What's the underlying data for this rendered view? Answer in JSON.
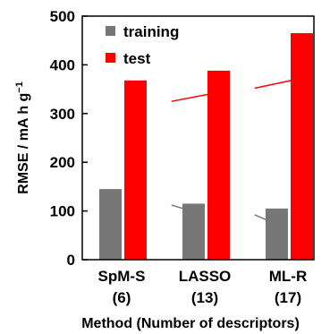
{
  "chart_data": {
    "type": "bar",
    "categories": [
      "SpM-S",
      "LASSO",
      "ML-R"
    ],
    "category_sublabels": [
      "(6)",
      "(13)",
      "(17)"
    ],
    "series": [
      {
        "name": "training",
        "values": [
          145,
          115,
          105
        ],
        "color": "#777777"
      },
      {
        "name": "test",
        "values": [
          368,
          388,
          465
        ],
        "color": "#ff0000"
      }
    ],
    "xlabel": "Method (Number of descriptors)",
    "ylabel": "RMSE / mA h g",
    "ylabel_superscript": "−1",
    "ylim": [
      0,
      500
    ],
    "yticks": [
      0,
      100,
      200,
      300,
      400,
      500
    ],
    "grid": false,
    "legend_position": "top-left",
    "annotations": [
      {
        "type": "arrow",
        "color": "#ff0000",
        "from": {
          "x": 0.6,
          "y": 325
        },
        "to": {
          "x": 1.15,
          "y": 343
        }
      },
      {
        "type": "arrow",
        "color": "#ff0000",
        "from": {
          "x": 1.6,
          "y": 352
        },
        "to": {
          "x": 2.15,
          "y": 372
        }
      },
      {
        "type": "arrow",
        "color": "#777777",
        "from": {
          "x": 0.6,
          "y": 112
        },
        "to": {
          "x": 0.9,
          "y": 97
        }
      },
      {
        "type": "arrow",
        "color": "#777777",
        "from": {
          "x": 1.6,
          "y": 92
        },
        "to": {
          "x": 1.9,
          "y": 70
        }
      }
    ]
  }
}
